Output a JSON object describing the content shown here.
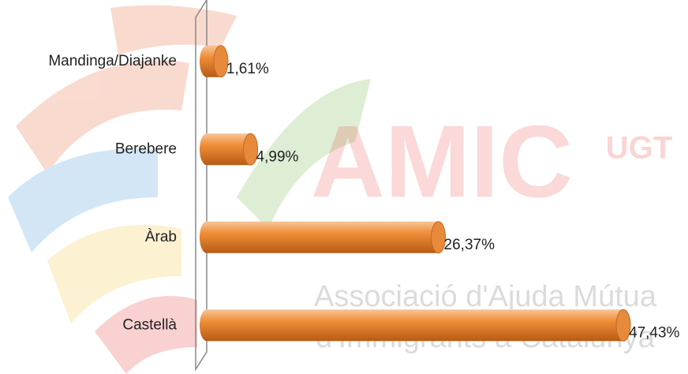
{
  "chart_data": {
    "type": "bar",
    "orientation": "horizontal",
    "categories": [
      "Mandinga/Diajanke",
      "Berebere",
      "Àrab",
      "Castellà"
    ],
    "values": [
      1.61,
      4.99,
      26.37,
      47.43
    ],
    "value_labels": [
      "1,61%",
      "4,99%",
      "26,37%",
      "47,43%"
    ],
    "color": "#f0903a"
  },
  "watermark": {
    "logo": "AMIC",
    "badge": "UGT",
    "line1": "Associació d'Ajuda Mútua",
    "line2": "d'Immigrants a Catalunya"
  }
}
